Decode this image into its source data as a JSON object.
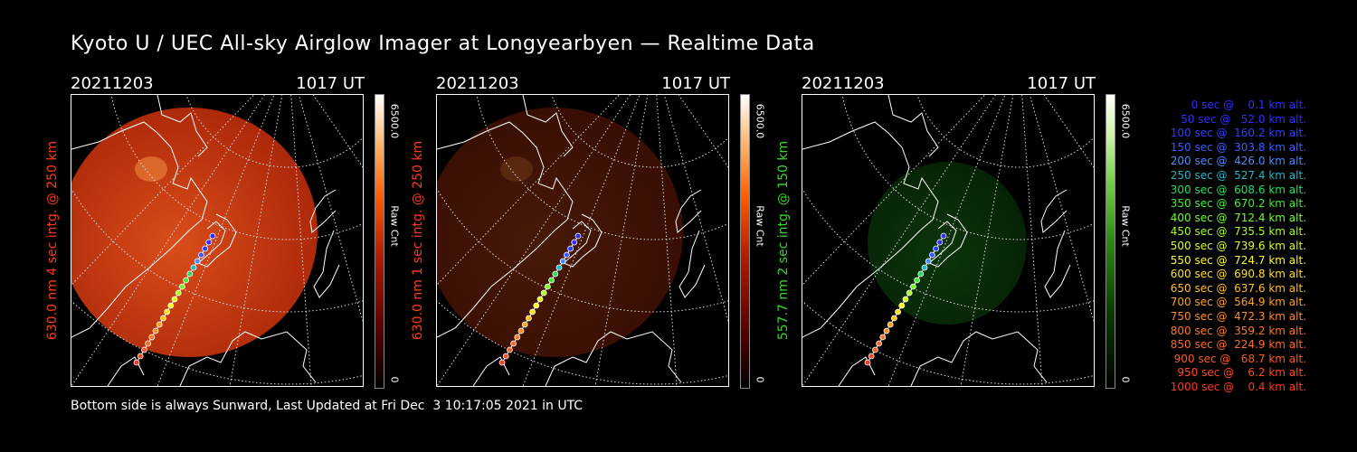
{
  "title": "Kyoto U / UEC All-sky Airglow Imager at Longyearbyen — Realtime Data",
  "panels": [
    {
      "date": "20211203",
      "time": "1017 UT",
      "side_label": "630.0 nm 4 sec intg. @ 250 km",
      "side_color": "#ff3a1a",
      "cbar_max": "6500.0",
      "cbar_unit": "Raw Cnt",
      "cbar_min": "0",
      "colormap": "red",
      "intensity": 0.85
    },
    {
      "date": "20211203",
      "time": "1017 UT",
      "side_label": "630.0 nm 1 sec intg. @ 250 km",
      "side_color": "#ff3a1a",
      "cbar_max": "6500.0",
      "cbar_unit": "Raw Cnt",
      "cbar_min": "0",
      "colormap": "red",
      "intensity": 0.28
    },
    {
      "date": "20211203",
      "time": "1017 UT",
      "side_label": "557.7 nm 2 sec intg. @ 150 km",
      "side_color": "#39d62a",
      "cbar_max": "6500.0",
      "cbar_unit": "Raw Cnt",
      "cbar_min": "0",
      "colormap": "green",
      "intensity": 0.3
    }
  ],
  "footer": "Bottom side is always Sunward, Last Updated at Fri Dec  3 10:17:05 2021 in UTC",
  "legend": [
    {
      "text": "   0 sec @    0.1 km alt.",
      "color": "#2f2fff"
    },
    {
      "text": "  50 sec @   52.0 km alt.",
      "color": "#2f2fff"
    },
    {
      "text": " 100 sec @  160.2 km alt.",
      "color": "#2f3fff"
    },
    {
      "text": " 150 sec @  303.8 km alt.",
      "color": "#3a5cff"
    },
    {
      "text": " 200 sec @  426.0 km alt.",
      "color": "#4a8aff"
    },
    {
      "text": " 250 sec @  527.4 km alt.",
      "color": "#20b8c8"
    },
    {
      "text": " 300 sec @  608.6 km alt.",
      "color": "#20e060"
    },
    {
      "text": " 350 sec @  670.2 km alt.",
      "color": "#40ee30"
    },
    {
      "text": " 400 sec @  712.4 km alt.",
      "color": "#70ff20"
    },
    {
      "text": " 450 sec @  735.5 km alt.",
      "color": "#a8ff20"
    },
    {
      "text": " 500 sec @  739.6 km alt.",
      "color": "#d8ff20"
    },
    {
      "text": " 550 sec @  724.7 km alt.",
      "color": "#ffff20"
    },
    {
      "text": " 600 sec @  690.8 km alt.",
      "color": "#ffe020"
    },
    {
      "text": " 650 sec @  637.6 km alt.",
      "color": "#ffc020"
    },
    {
      "text": " 700 sec @  564.9 km alt.",
      "color": "#ffa020"
    },
    {
      "text": " 750 sec @  472.3 km alt.",
      "color": "#ff8a20"
    },
    {
      "text": " 800 sec @  359.2 km alt.",
      "color": "#ff7a20"
    },
    {
      "text": " 850 sec @  224.9 km alt.",
      "color": "#ff6a20"
    },
    {
      "text": " 900 sec @   68.7 km alt.",
      "color": "#ff5a20"
    },
    {
      "text": " 950 sec @    6.2 km alt.",
      "color": "#ff4a20"
    },
    {
      "text": "1000 sec @    0.4 km alt.",
      "color": "#ff3a20"
    }
  ]
}
